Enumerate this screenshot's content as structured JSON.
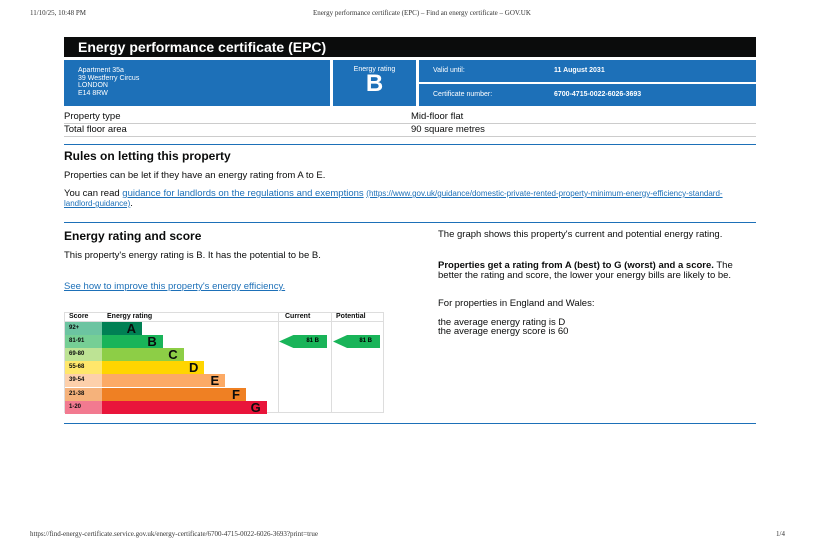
{
  "print_header": {
    "datetime": "11/10/25, 10:48 PM",
    "title": "Energy performance certificate (EPC) – Find an energy certificate – GOV.UK"
  },
  "print_footer": {
    "url": "https://find-energy-certificate.service.gov.uk/energy-certificate/6700-4715-0022-6026-3693?print=true",
    "page": "1/4"
  },
  "title": "Energy performance certificate (EPC)",
  "address": [
    "Apartment 35a",
    "39 Westferry Circus",
    "LONDON",
    "E14 8RW"
  ],
  "energy_rating": {
    "label": "Energy rating",
    "value": "B"
  },
  "valid_until": {
    "label": "Valid until:",
    "value": "11 August 2031"
  },
  "certificate_number": {
    "label": "Certificate number:",
    "value": "6700-4715-0022-6026-3693"
  },
  "property": [
    {
      "label": "Property type",
      "value": "Mid-floor flat"
    },
    {
      "label": "Total floor area",
      "value": "90 square metres"
    }
  ],
  "rules": {
    "heading": "Rules on letting this property",
    "p1": "Properties can be let if they have an energy rating from A to E.",
    "p2_pre": "You can read ",
    "link": "guidance for landlords on the regulations and exemptions",
    "url": "(https://www.gov.uk/guidance/domestic-private-rented-property-minimum-energy-efficiency-standard-landlord-guidance)",
    "p2_post": "."
  },
  "score": {
    "heading": "Energy rating and score",
    "p1": "This property's energy rating is B. It has the potential to be B.",
    "link": "See how to improve this property's energy efficiency.",
    "right_p1": "The graph shows this property's current and potential energy rating.",
    "right_p2_bold": "Properties get a rating from A (best) to G (worst) and a score.",
    "right_p2": " The better the rating and score, the lower your energy bills are likely to be.",
    "right_p3": "For properties in England and Wales:",
    "avg1": "the average energy rating is D",
    "avg2": "the average energy score is 60"
  },
  "graph": {
    "headers": {
      "score": "Score",
      "rating": "Energy rating",
      "current": "Current",
      "potential": "Potential"
    },
    "bands": [
      {
        "score": "92+",
        "letter": "A",
        "color": "#008054",
        "light": "#6cc4a1"
      },
      {
        "score": "81-91",
        "letter": "B",
        "color": "#19b459",
        "light": "#76cf95"
      },
      {
        "score": "69-80",
        "letter": "C",
        "color": "#8dce46",
        "light": "#bde394"
      },
      {
        "score": "55-68",
        "letter": "D",
        "color": "#ffd500",
        "light": "#ffe76b"
      },
      {
        "score": "39-54",
        "letter": "E",
        "color": "#fcaa65",
        "light": "#fdd0ab"
      },
      {
        "score": "21-38",
        "letter": "F",
        "color": "#ef8023",
        "light": "#f5b27b"
      },
      {
        "score": "1-20",
        "letter": "G",
        "color": "#e9153b",
        "light": "#f27a90"
      }
    ],
    "current": "81  B",
    "potential": "81  B"
  }
}
